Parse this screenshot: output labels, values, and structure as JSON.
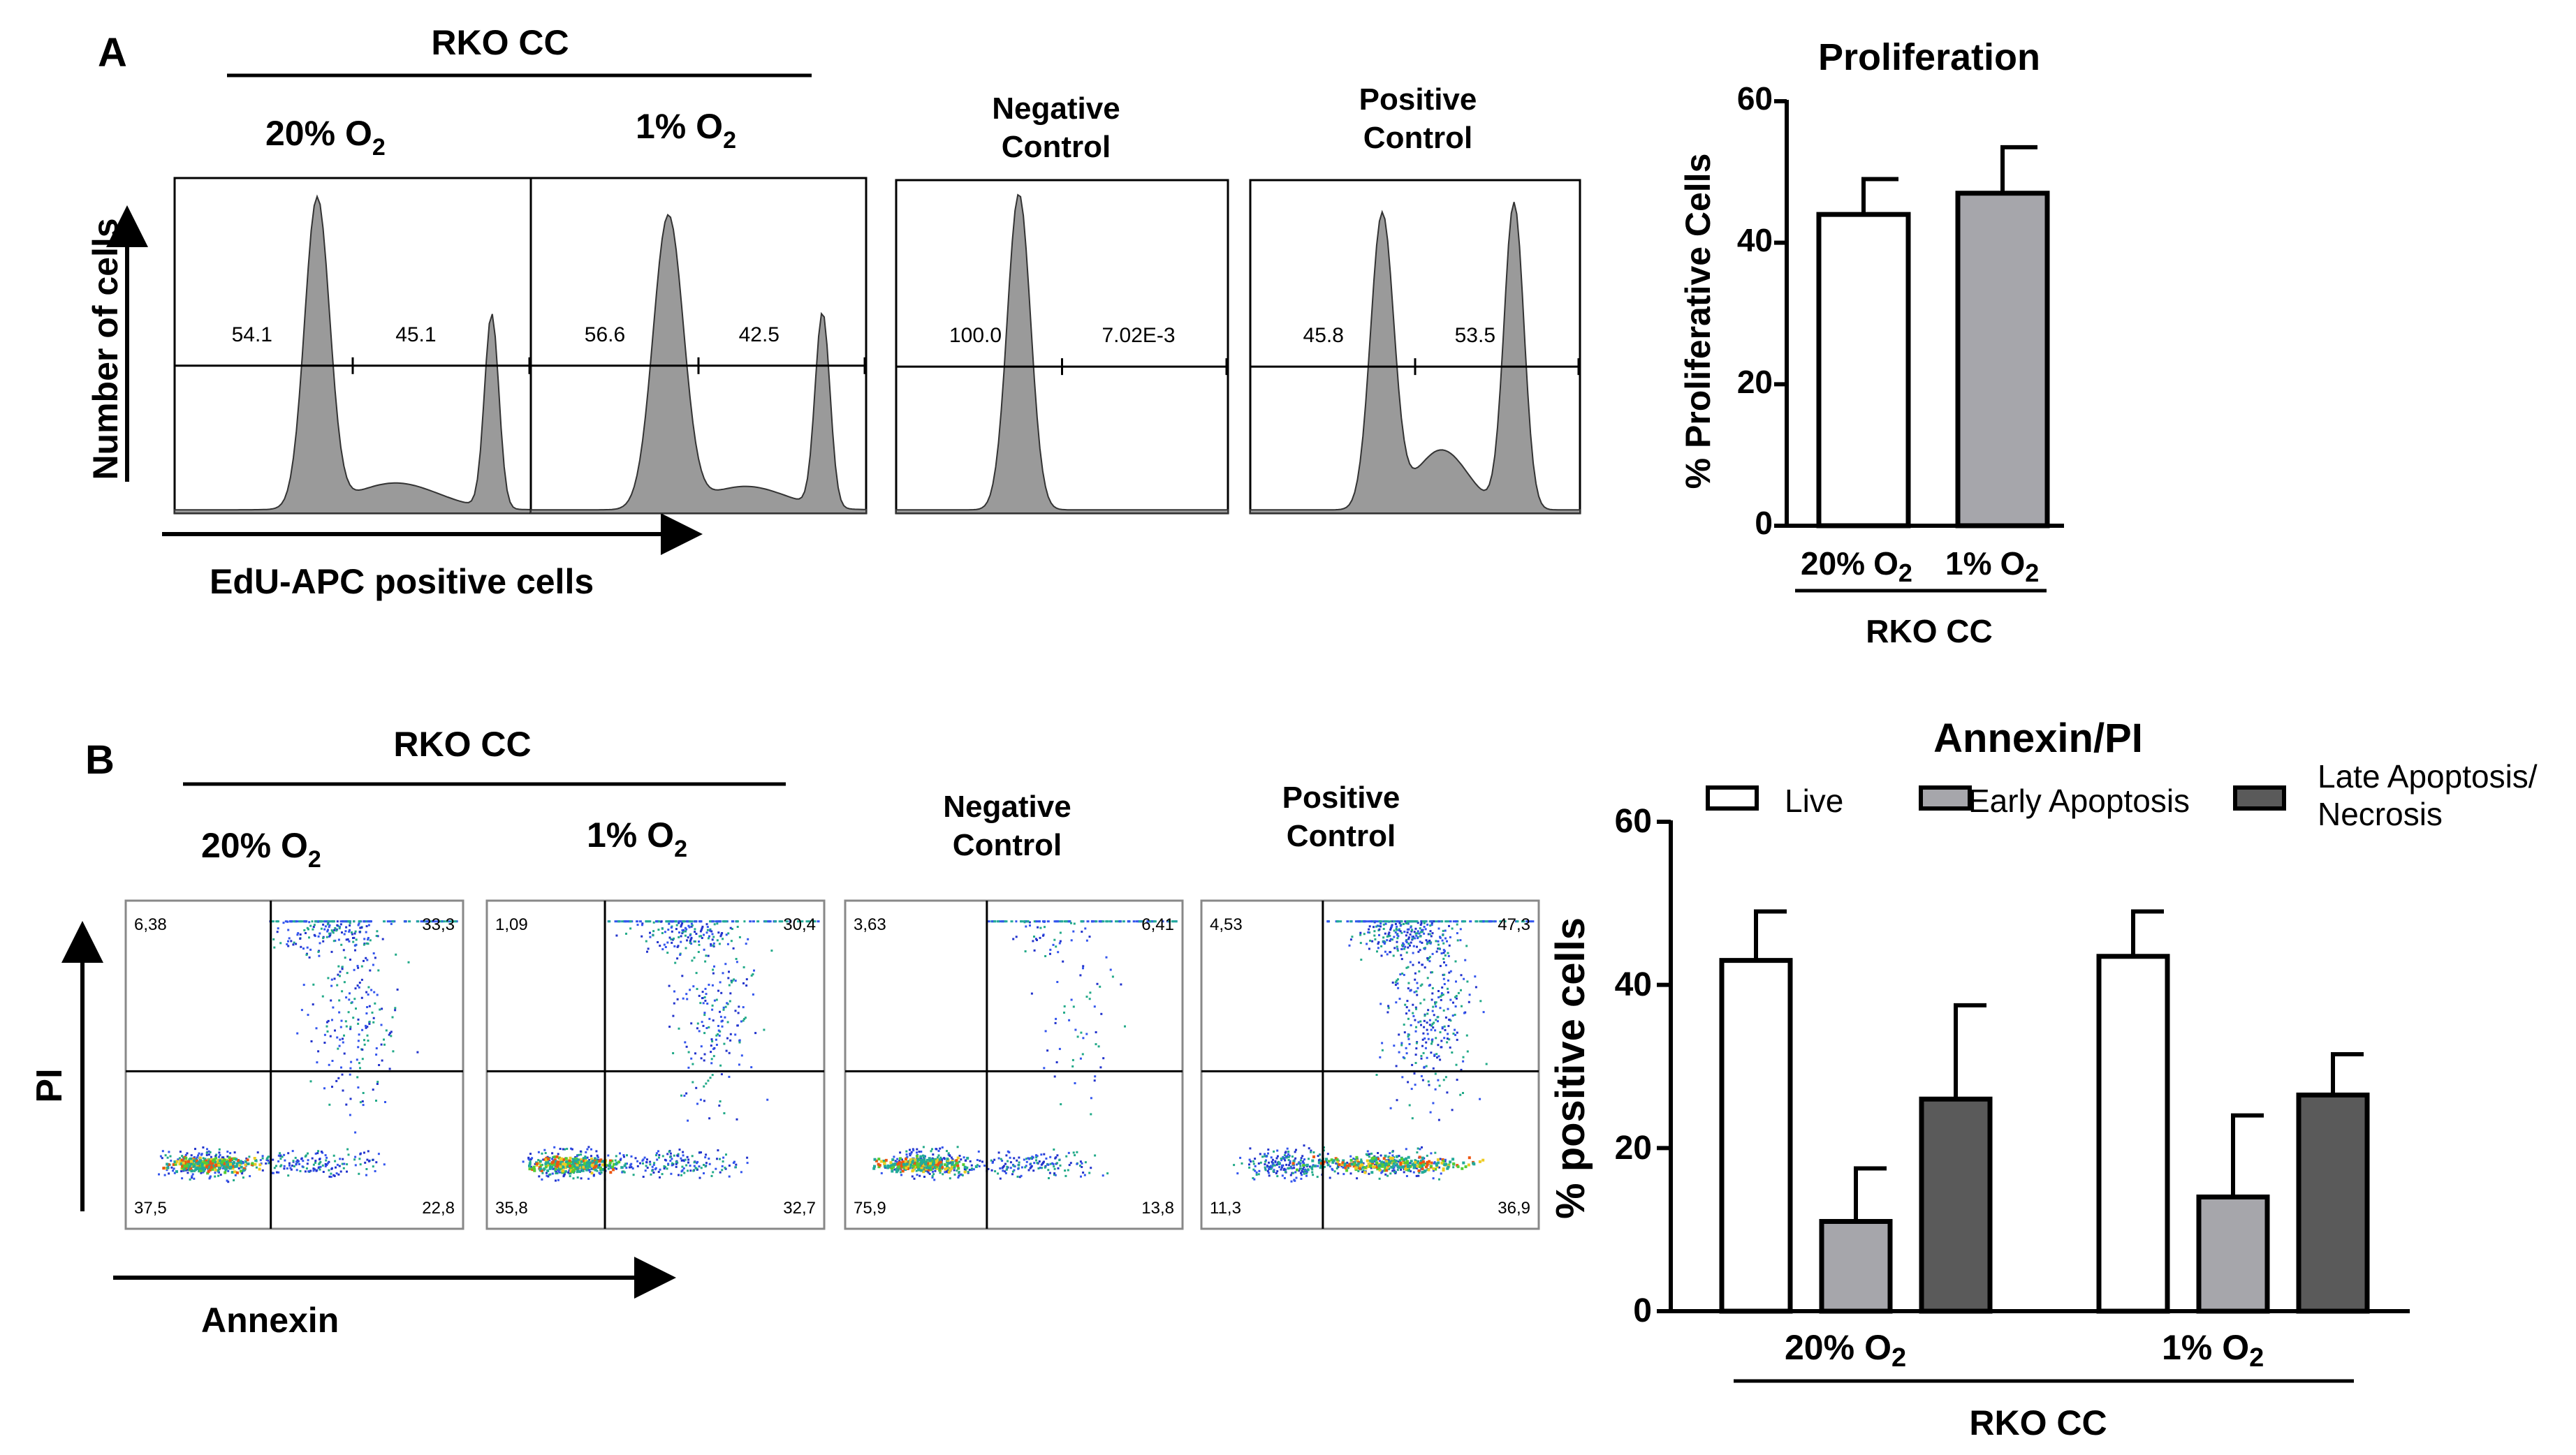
{
  "panel_a": {
    "letter": "A",
    "group_label": "RKO CC",
    "cond_20": "20% O",
    "cond_1": "1% O",
    "sub2": "2",
    "negative_control": [
      "Negative",
      "Control"
    ],
    "positive_control": [
      "Positive",
      "Control"
    ],
    "y_axis_label": "Number of cells",
    "x_axis_label": "EdU-APC positive cells",
    "histograms": [
      {
        "name": "20% O2",
        "left_value": "54.1",
        "right_value": "45.1"
      },
      {
        "name": "1% O2",
        "left_value": "56.6",
        "right_value": "42.5"
      },
      {
        "name": "Negative Control",
        "left_value": "100.0",
        "right_value": "7.02E-3"
      },
      {
        "name": "Positive Control",
        "left_value": "45.8",
        "right_value": "53.5"
      }
    ]
  },
  "panel_b": {
    "letter": "B",
    "group_label": "RKO CC",
    "cond_20": "20% O",
    "cond_1": "1% O",
    "sub2": "2",
    "negative_control": [
      "Negative",
      "Control"
    ],
    "positive_control": [
      "Positive",
      "Control"
    ],
    "y_axis_label": "PI",
    "x_axis_label": "Annexin",
    "scatter_plots": [
      {
        "name": "20% O2",
        "q_ul": "6,38",
        "q_ur": "33,3",
        "q_ll": "37,5",
        "q_lr": "22,8"
      },
      {
        "name": "1% O2",
        "q_ul": "1,09",
        "q_ur": "30,4",
        "q_ll": "35,8",
        "q_lr": "32,7"
      },
      {
        "name": "Negative Control",
        "q_ul": "3,63",
        "q_ur": "6,41",
        "q_ll": "75,9",
        "q_lr": "13,8"
      },
      {
        "name": "Positive Control",
        "q_ul": "4,53",
        "q_ur": "47,3",
        "q_ll": "11,3",
        "q_lr": "36,9"
      }
    ]
  },
  "colors": {
    "histogram_fill": "#9a9a9a",
    "bar_white": "#ffffff",
    "bar_light": "#a6a6ab",
    "bar_dark": "#5a5a5a"
  },
  "chart_data": [
    {
      "type": "bar",
      "title": "Proliferation",
      "ylabel": "% Proliferative Cells",
      "xlabel": "",
      "group_label": "RKO CC",
      "categories": [
        "20% O2",
        "1% O2"
      ],
      "tick_labels": [
        "20%",
        "O",
        "2",
        "1%",
        "O",
        "2"
      ],
      "values": [
        44,
        47
      ],
      "errors": [
        5,
        6.5
      ],
      "ylim": [
        0,
        60
      ],
      "yticks": [
        "0",
        "20",
        "40",
        "60"
      ],
      "grid": false
    },
    {
      "type": "bar",
      "title": "Annexin/PI",
      "ylabel": "% positive cells",
      "xlabel": "",
      "group_label": "RKO CC",
      "categories": [
        "20% O2",
        "1% O2"
      ],
      "tick_labels": [
        "20%",
        "O",
        "2",
        "1%",
        "O",
        "2"
      ],
      "legend_position": "top",
      "legend": [
        "Live",
        "Early Apoptosis",
        "Late Apoptosis/",
        "Necrosis"
      ],
      "series": [
        {
          "name": "Live",
          "values": [
            43,
            43.5
          ],
          "errors": [
            6,
            5.5
          ]
        },
        {
          "name": "Early Apoptosis",
          "values": [
            11,
            14
          ],
          "errors": [
            6.5,
            10
          ]
        },
        {
          "name": "Late Apoptosis/Necrosis",
          "values": [
            26,
            26.5
          ],
          "errors": [
            11.5,
            5
          ]
        }
      ],
      "ylim": [
        0,
        60
      ],
      "yticks": [
        "0",
        "20",
        "40",
        "60"
      ],
      "grid": false
    }
  ]
}
